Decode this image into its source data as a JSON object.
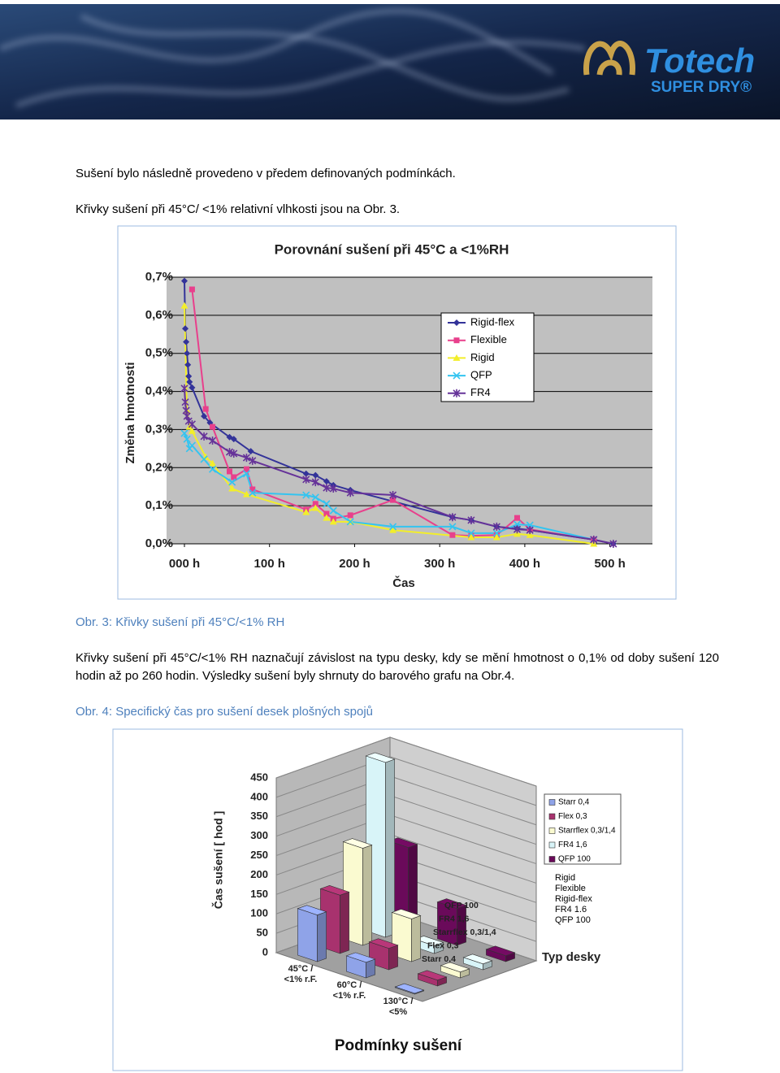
{
  "header": {
    "logo_name": "Totech",
    "logo_tagline": "SUPER DRY®"
  },
  "paragraphs": [
    "Sušení bylo následně provedeno v předem definovaných podmínkách.",
    "Křivky sušení při  45°C/ <1% relativní vlhkosti jsou na Obr. 3.",
    "Křivky sušení při 45°C/<1% RH naznačují závislost na typu desky, kdy se mění hmotnost o 0,1% od doby sušení 120 hodin až po 260 hodin. Výsledky sušení byly shrnuty do barového grafu na Obr.4."
  ],
  "captions": [
    "Obr. 3: Křivky sušení při 45°C/<1% RH",
    "Obr. 4:  Specifický čas pro sušení desek plošných spojů"
  ],
  "chart_data": [
    {
      "type": "line",
      "title": "Porovnání sušení při 45°C  a  <1%RH",
      "x_label": "Čas",
      "y_label": "Změna hmotnosti",
      "xlim": [
        -21,
        550
      ],
      "xticks": [
        {
          "value": 0,
          "label": "000 h"
        },
        {
          "value": 100,
          "label": "100 h"
        },
        {
          "value": 200,
          "label": "200 h"
        },
        {
          "value": 300,
          "label": "300 h"
        },
        {
          "value": 400,
          "label": "400 h"
        },
        {
          "value": 500,
          "label": "500 h"
        }
      ],
      "ylim": [
        0,
        0.7
      ],
      "yticks": [
        {
          "value": 0,
          "label": "0,0%"
        },
        {
          "value": 0.1,
          "label": "0,1%"
        },
        {
          "value": 0.2,
          "label": "0,2%"
        },
        {
          "value": 0.3,
          "label": "0,3%"
        },
        {
          "value": 0.4,
          "label": "0,4%"
        },
        {
          "value": 0.5,
          "label": "0,5%"
        },
        {
          "value": 0.6,
          "label": "0,6%"
        },
        {
          "value": 0.7,
          "label": "0,7%"
        }
      ],
      "grid": true,
      "legend": "upper-right",
      "series": [
        {
          "name": "Rigid-flex",
          "color": "#333399",
          "marker": "diamond",
          "x": [
            0,
            1,
            2,
            3,
            4,
            5,
            6,
            9,
            23,
            30,
            53,
            58,
            78,
            143,
            154,
            167,
            175,
            195,
            315,
            337,
            367,
            391,
            406,
            481,
            504
          ],
          "values": [
            0.69,
            0.565,
            0.53,
            0.5,
            0.47,
            0.44,
            0.425,
            0.41,
            0.335,
            0.318,
            0.28,
            0.275,
            0.243,
            0.184,
            0.18,
            0.164,
            0.154,
            0.141,
            0.07,
            0.062,
            0.045,
            0.04,
            0.036,
            0.011,
            0
          ]
        },
        {
          "name": "Flexible",
          "color": "#e8408c",
          "marker": "square",
          "x": [
            9,
            25,
            33,
            53,
            58,
            73,
            80,
            143,
            154,
            167,
            175,
            195,
            245,
            315,
            337,
            367,
            391,
            406,
            481
          ],
          "values": [
            0.668,
            0.354,
            0.307,
            0.19,
            0.175,
            0.196,
            0.143,
            0.09,
            0.105,
            0.079,
            0.066,
            0.075,
            0.115,
            0.023,
            0.021,
            0.023,
            0.068,
            0.038,
            0.011
          ]
        },
        {
          "name": "Rigid",
          "color": "#f2ee2a",
          "marker": "triangle",
          "x": [
            0,
            3,
            6,
            9,
            25,
            33,
            56,
            73,
            143,
            154,
            167,
            175,
            195,
            245,
            337,
            367,
            391,
            406,
            481
          ],
          "values": [
            0.625,
            0.35,
            0.307,
            0.296,
            0.228,
            0.211,
            0.145,
            0.13,
            0.083,
            0.094,
            0.068,
            0.058,
            0.058,
            0.036,
            0.017,
            0.017,
            0.026,
            0.023,
            0
          ]
        },
        {
          "name": "QFP",
          "color": "#33c4f0",
          "marker": "x",
          "x": [
            0,
            3,
            6,
            9,
            23,
            33,
            56,
            73,
            80,
            143,
            154,
            167,
            175,
            195,
            245,
            315,
            337,
            367,
            391,
            406,
            481
          ],
          "values": [
            0.29,
            0.275,
            0.25,
            0.258,
            0.222,
            0.196,
            0.162,
            0.184,
            0.134,
            0.128,
            0.122,
            0.105,
            0.087,
            0.058,
            0.045,
            0.045,
            0.028,
            0.028,
            0.051,
            0.049,
            0.011
          ]
        },
        {
          "name": "FR4",
          "color": "#663399",
          "marker": "star",
          "x": [
            0,
            1,
            2,
            3,
            5,
            9,
            23,
            33,
            53,
            58,
            73,
            80,
            143,
            154,
            167,
            175,
            195,
            245,
            315,
            337,
            367,
            391,
            406,
            481,
            504
          ],
          "values": [
            0.408,
            0.372,
            0.35,
            0.335,
            0.322,
            0.314,
            0.282,
            0.271,
            0.241,
            0.237,
            0.226,
            0.218,
            0.169,
            0.162,
            0.147,
            0.145,
            0.134,
            0.128,
            0.07,
            0.062,
            0.045,
            0.038,
            0.036,
            0.011,
            0
          ]
        }
      ]
    },
    {
      "type": "bar3d",
      "x_label": "Podmínky sušení",
      "y_label": "Čas sušení  [ hod ]",
      "z_label": "Typ desky",
      "categories": [
        [
          "45°C /",
          "<1% r.F."
        ],
        [
          "60°C /",
          "<1% r.F."
        ],
        [
          "130°C /",
          "<5%"
        ]
      ],
      "board_types": [
        "Rigid",
        "Flexible",
        "Rigid-flex",
        "FR4 1.6",
        "QFP 100"
      ],
      "ylim": [
        0,
        450
      ],
      "yticks": [
        0,
        50,
        100,
        150,
        200,
        250,
        300,
        350,
        400,
        450
      ],
      "grid": true,
      "legend": "upper-right",
      "series": [
        {
          "name": "Starr 0,4",
          "color": "#8fa3e8",
          "values": [
            120,
            40,
            2
          ]
        },
        {
          "name": "Flex 0,3",
          "color": "#a8326e",
          "values": [
            150,
            55,
            15
          ]
        },
        {
          "name": "Starrflex 0,3/1,4",
          "color": "#fafad0",
          "values": [
            250,
            110,
            15
          ]
        },
        {
          "name": "FR4 1,6",
          "color": "#d8f4f8",
          "values": [
            450,
            20,
            15
          ]
        },
        {
          "name": "QFP 100",
          "color": "#6a0a5a",
          "values": [
            210,
            95,
            15
          ]
        }
      ]
    }
  ]
}
